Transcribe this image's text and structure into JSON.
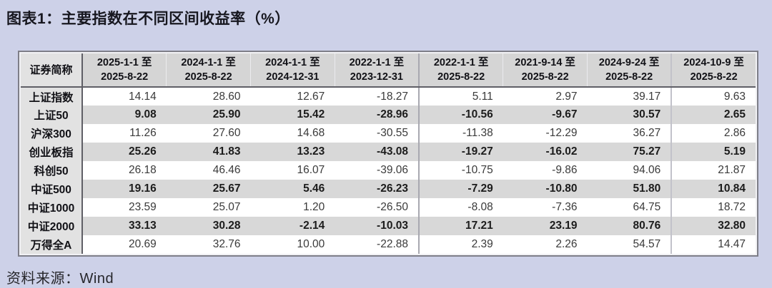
{
  "title": "图表1：主要指数在不同区间收益率（%）",
  "source": "资料来源：Wind",
  "colors": {
    "page_background": "#cdd1e8",
    "header_background": "#d5d5d5",
    "name_column_background": "#e2e2e2",
    "stripe_row_background": "#d8d8d8",
    "frame_border": "#7e7e88"
  },
  "table": {
    "corner_header": "证券简称",
    "period_headers": [
      "2025-1-1 至\n2025-8-22",
      "2024-1-1 至\n2025-8-22",
      "2024-1-1 至\n2024-12-31",
      "2022-1-1 至\n2023-12-31",
      "2022-1-1 至\n2025-8-22",
      "2021-9-14 至\n2025-8-22",
      "2024-9-24 至\n2025-8-22",
      "2024-10-9 至\n2025-8-22"
    ],
    "rows": [
      {
        "name": "上证指数",
        "values": [
          "14.14",
          "28.60",
          "12.67",
          "-18.27",
          "5.11",
          "2.97",
          "39.17",
          "9.63"
        ]
      },
      {
        "name": "上证50",
        "values": [
          "9.08",
          "25.90",
          "15.42",
          "-28.96",
          "-10.56",
          "-9.67",
          "30.57",
          "2.65"
        ]
      },
      {
        "name": "沪深300",
        "values": [
          "11.26",
          "27.60",
          "14.68",
          "-30.55",
          "-11.38",
          "-12.29",
          "36.27",
          "2.86"
        ]
      },
      {
        "name": "创业板指",
        "values": [
          "25.26",
          "41.83",
          "13.23",
          "-43.08",
          "-19.27",
          "-16.02",
          "75.27",
          "5.19"
        ]
      },
      {
        "name": "科创50",
        "values": [
          "26.18",
          "46.46",
          "16.07",
          "-39.06",
          "-10.75",
          "-9.86",
          "94.06",
          "21.87"
        ]
      },
      {
        "name": "中证500",
        "values": [
          "19.16",
          "25.67",
          "5.46",
          "-26.23",
          "-7.29",
          "-10.80",
          "51.80",
          "10.84"
        ]
      },
      {
        "name": "中证1000",
        "values": [
          "23.59",
          "25.07",
          "1.20",
          "-26.50",
          "-8.08",
          "-7.36",
          "64.75",
          "18.72"
        ]
      },
      {
        "name": "中证2000",
        "values": [
          "33.13",
          "30.28",
          "-2.14",
          "-10.03",
          "17.21",
          "23.19",
          "80.76",
          "32.80"
        ]
      },
      {
        "name": "万得全A",
        "values": [
          "20.69",
          "32.76",
          "10.00",
          "-22.88",
          "2.39",
          "2.26",
          "54.57",
          "14.47"
        ]
      }
    ]
  }
}
